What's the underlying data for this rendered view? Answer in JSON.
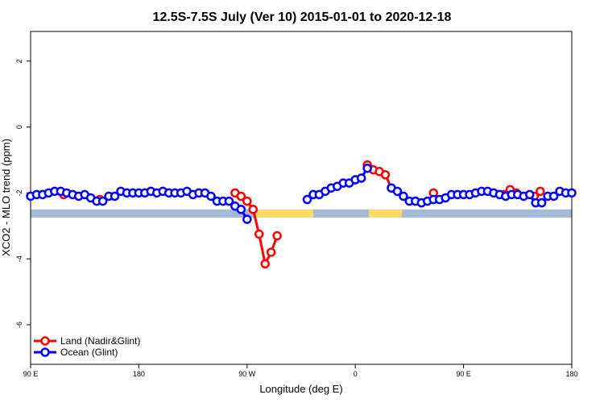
{
  "chart_data": {
    "type": "line",
    "title": "12.5S-7.5S July (Ver 10)   2015-01-01 to 2020-12-18",
    "xlabel": "Longitude (deg E)",
    "ylabel": "XCO2 - MLO trend (ppm)",
    "xlim": [
      90,
      450
    ],
    "ylim": [
      -7.2,
      2.9
    ],
    "xticks": [
      {
        "value": 90,
        "label": "90 E"
      },
      {
        "value": 162,
        "label": "180"
      },
      {
        "value": 234,
        "label": "90 W"
      },
      {
        "value": 306,
        "label": "0"
      },
      {
        "value": 378,
        "label": "90 E"
      },
      {
        "value": 450,
        "label": "180"
      }
    ],
    "yticks": [
      2,
      0,
      -2,
      -4,
      -6
    ],
    "grid": false,
    "legend": {
      "position": "bottom-left",
      "entries": [
        {
          "name": "Land (Nadir&Glint)",
          "color": "#ff0000"
        },
        {
          "name": "Ocean (Glint)",
          "color": "#0000ff"
        }
      ]
    },
    "land_ocean_band": {
      "ymax": -2.5,
      "ymin": -2.75,
      "ocean_color": "#a5bad6",
      "land_color": "#ffd86b",
      "land_segments": [
        [
          239,
          278
        ],
        [
          315,
          337
        ]
      ]
    },
    "series": [
      {
        "name": "Land (Nadir&Glint)",
        "color": "#ff0000",
        "x": [
          112,
          136,
          226,
          230,
          234,
          238,
          242,
          246,
          250,
          254,
          314,
          318,
          322,
          326,
          330,
          358,
          405,
          409,
          413,
          425,
          429
        ],
        "y": [
          -2.05,
          -2.2,
          -2.0,
          -2.1,
          -2.25,
          -2.5,
          -3.25,
          -4.15,
          -3.8,
          -3.3,
          -1.15,
          -1.3,
          -1.35,
          -1.45,
          -1.85,
          -2.0,
          -2.05,
          -1.9,
          -2.0,
          -2.1,
          -1.95
        ]
      },
      {
        "name": "Ocean (Glint)",
        "color": "#0000ff",
        "x": [
          90,
          94,
          98,
          102,
          106,
          110,
          114,
          118,
          122,
          126,
          130,
          134,
          138,
          142,
          146,
          150,
          154,
          158,
          162,
          166,
          170,
          174,
          178,
          182,
          186,
          190,
          194,
          198,
          202,
          206,
          210,
          214,
          218,
          222,
          226,
          230,
          234,
          274,
          278,
          282,
          286,
          290,
          294,
          298,
          302,
          306,
          310,
          314,
          330,
          334,
          338,
          342,
          346,
          350,
          354,
          358,
          362,
          366,
          370,
          374,
          378,
          382,
          386,
          390,
          394,
          398,
          402,
          406,
          410,
          414,
          418,
          422,
          426,
          430,
          434,
          438,
          442,
          446,
          450
        ],
        "y": [
          -2.1,
          -2.05,
          -2.05,
          -2.0,
          -1.95,
          -1.95,
          -2.0,
          -2.05,
          -2.1,
          -2.05,
          -2.15,
          -2.25,
          -2.25,
          -2.1,
          -2.1,
          -1.95,
          -2.0,
          -2.0,
          -2.0,
          -2.0,
          -1.95,
          -2.0,
          -1.95,
          -2.0,
          -2.0,
          -2.0,
          -1.95,
          -2.05,
          -2.0,
          -2.0,
          -2.1,
          -2.25,
          -2.25,
          -2.25,
          -2.4,
          -2.5,
          -2.8,
          -2.2,
          -2.05,
          -2.05,
          -1.95,
          -1.85,
          -1.8,
          -1.7,
          -1.7,
          -1.6,
          -1.55,
          -1.25,
          -1.85,
          -1.95,
          -2.1,
          -2.25,
          -2.25,
          -2.3,
          -2.25,
          -2.2,
          -2.2,
          -2.15,
          -2.05,
          -2.05,
          -2.05,
          -2.05,
          -2.0,
          -1.95,
          -1.95,
          -2.0,
          -2.05,
          -2.1,
          -2.05,
          -2.05,
          -2.1,
          -2.05,
          -2.3,
          -2.3,
          -2.1,
          -2.1,
          -1.95,
          -2.0,
          -2.0
        ]
      }
    ]
  }
}
